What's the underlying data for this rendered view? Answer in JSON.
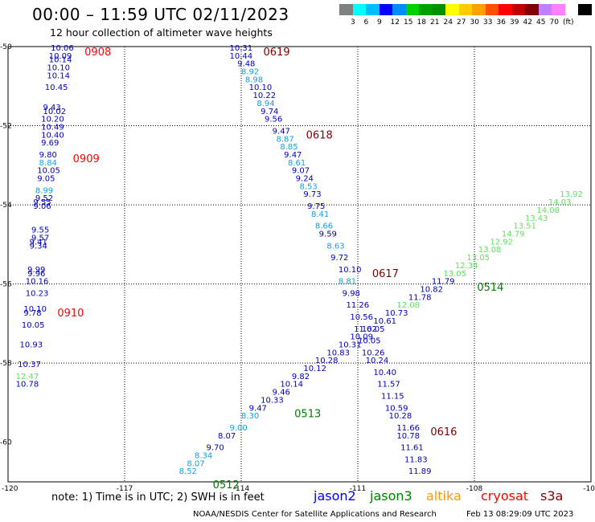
{
  "header": {
    "title": "00:00 – 11:59 UTC 02/11/2023",
    "subtitle": "12 hour collection of altimeter wave heights"
  },
  "scale": {
    "colors": [
      "#808080",
      "#00ffff",
      "#00bfff",
      "#0000ff",
      "#008cff",
      "#00d000",
      "#00a000",
      "#009000",
      "#ffff00",
      "#ffcc00",
      "#ffa000",
      "#ff5000",
      "#ff0000",
      "#c00000",
      "#800000",
      "#c080ff",
      "#ff80ff",
      "#ffffff",
      "#000000"
    ],
    "labels": [
      "3",
      "6",
      "9",
      "12",
      "15",
      "18",
      "21",
      "24",
      "27",
      "30",
      "33",
      "36",
      "39",
      "42",
      "45",
      "70"
    ],
    "unit": "(ft)"
  },
  "axes": {
    "lat_labels": [
      "-50",
      "-52",
      "-54",
      "-56",
      "-58",
      "-60"
    ],
    "lon_labels": [
      "-120",
      "-117",
      "-114",
      "-111",
      "-108",
      "-10"
    ]
  },
  "colors": {
    "darkblue": "#0000c0",
    "lightblue": "#10a0e0",
    "lightgreen": "#60e060",
    "darkgreen": "#008000",
    "red": "#ff0000",
    "maroon": "#800000",
    "orange": "#ff9900",
    "altika_text": "#ff9900"
  },
  "tracks": [
    {
      "time": "0619",
      "color": "maroon",
      "points": [
        {
          "lon": -114.3,
          "lat": -50.1,
          "v": "10.31",
          "c": "darkblue"
        },
        {
          "lon": -114.3,
          "lat": -50.3,
          "v": "10.44",
          "c": "darkblue"
        },
        {
          "lon": -114.1,
          "lat": -50.5,
          "v": "9.48",
          "c": "darkblue"
        },
        {
          "lon": -114.0,
          "lat": -50.7,
          "v": "8.92",
          "c": "lightblue"
        },
        {
          "lon": -113.9,
          "lat": -50.9,
          "v": "8.98",
          "c": "lightblue"
        },
        {
          "lon": -113.8,
          "lat": -51.1,
          "v": "10.10",
          "c": "darkblue"
        },
        {
          "lon": -113.7,
          "lat": -51.3,
          "v": "10.22",
          "c": "darkblue"
        },
        {
          "lon": -113.6,
          "lat": -51.5,
          "v": "8.94",
          "c": "lightblue"
        },
        {
          "lon": -113.5,
          "lat": -51.7,
          "v": "9.74",
          "c": "darkblue"
        },
        {
          "lon": -113.4,
          "lat": -51.9,
          "v": "9.56",
          "c": "darkblue"
        }
      ]
    },
    {
      "time": "0618",
      "color": "maroon",
      "points": [
        {
          "lon": -113.2,
          "lat": -52.2,
          "v": "9.47",
          "c": "darkblue"
        },
        {
          "lon": -113.1,
          "lat": -52.4,
          "v": "8.87",
          "c": "lightblue"
        },
        {
          "lon": -113.0,
          "lat": -52.6,
          "v": "8.85",
          "c": "lightblue"
        },
        {
          "lon": -112.9,
          "lat": -52.8,
          "v": "9.47",
          "c": "darkblue"
        },
        {
          "lon": -112.8,
          "lat": -53.0,
          "v": "8.61",
          "c": "lightblue"
        },
        {
          "lon": -112.7,
          "lat": -53.2,
          "v": "9.07",
          "c": "darkblue"
        },
        {
          "lon": -112.6,
          "lat": -53.4,
          "v": "9.24",
          "c": "darkblue"
        },
        {
          "lon": -112.5,
          "lat": -53.6,
          "v": "8.53",
          "c": "lightblue"
        },
        {
          "lon": -112.4,
          "lat": -53.8,
          "v": "9.73",
          "c": "darkblue"
        },
        {
          "lon": -112.3,
          "lat": -54.1,
          "v": "9.75",
          "c": "darkblue"
        },
        {
          "lon": -112.2,
          "lat": -54.3,
          "v": "8.41",
          "c": "lightblue"
        },
        {
          "lon": -112.1,
          "lat": -54.6,
          "v": "8.66",
          "c": "lightblue"
        },
        {
          "lon": -112.0,
          "lat": -54.8,
          "v": "9.59",
          "c": "darkblue"
        },
        {
          "lon": -111.8,
          "lat": -55.1,
          "v": "8.63",
          "c": "lightblue"
        },
        {
          "lon": -111.7,
          "lat": -55.4,
          "v": "9.72",
          "c": "darkblue"
        }
      ]
    },
    {
      "time": "0617",
      "color": "maroon",
      "points": [
        {
          "lon": -111.5,
          "lat": -55.7,
          "v": "10.10",
          "c": "darkblue"
        },
        {
          "lon": -111.5,
          "lat": -56.0,
          "v": "8.81",
          "c": "lightblue"
        },
        {
          "lon": -111.4,
          "lat": -56.3,
          "v": "9.98",
          "c": "darkblue"
        },
        {
          "lon": -111.3,
          "lat": -56.6,
          "v": "11.26",
          "c": "darkblue"
        },
        {
          "lon": -111.2,
          "lat": -56.9,
          "v": "10.56",
          "c": "darkblue"
        },
        {
          "lon": -111.1,
          "lat": -57.2,
          "v": "11.62",
          "c": "darkblue"
        },
        {
          "lon": -111.0,
          "lat": -57.5,
          "v": "10.05",
          "c": "darkblue"
        },
        {
          "lon": -110.9,
          "lat": -57.8,
          "v": "10.26",
          "c": "darkblue"
        },
        {
          "lon": -110.8,
          "lat": -58.0,
          "v": "10.24",
          "c": "darkblue"
        },
        {
          "lon": -110.6,
          "lat": -58.3,
          "v": "10.40",
          "c": "darkblue"
        },
        {
          "lon": -110.5,
          "lat": -58.6,
          "v": "11.57",
          "c": "darkblue"
        },
        {
          "lon": -110.4,
          "lat": -58.9,
          "v": "11.15",
          "c": "darkblue"
        },
        {
          "lon": -110.3,
          "lat": -59.2,
          "v": "10.59",
          "c": "darkblue"
        },
        {
          "lon": -110.2,
          "lat": -59.4,
          "v": "10.28",
          "c": "darkblue"
        }
      ]
    },
    {
      "time": "0616",
      "color": "maroon",
      "points": [
        {
          "lon": -110.0,
          "lat": -59.7,
          "v": "11.66",
          "c": "darkblue"
        },
        {
          "lon": -110.0,
          "lat": -59.9,
          "v": "10.78",
          "c": "darkblue"
        },
        {
          "lon": -109.9,
          "lat": -60.2,
          "v": "11.61",
          "c": "darkblue"
        },
        {
          "lon": -109.8,
          "lat": -60.5,
          "v": "11.83",
          "c": "darkblue"
        },
        {
          "lon": -109.7,
          "lat": -60.8,
          "v": "11.89",
          "c": "darkblue"
        }
      ]
    },
    {
      "time": "0908",
      "color": "red",
      "points": [
        {
          "lon": -118.9,
          "lat": -50.1,
          "v": "10.06",
          "c": "darkblue"
        },
        {
          "lon": -118.95,
          "lat": -50.3,
          "v": "10.09",
          "c": "darkblue"
        },
        {
          "lon": -118.95,
          "lat": -50.4,
          "v": "10.14",
          "c": "darkblue"
        },
        {
          "lon": -119.0,
          "lat": -50.6,
          "v": "10.10",
          "c": "darkblue"
        },
        {
          "lon": -119.0,
          "lat": -50.8,
          "v": "10.14",
          "c": "darkblue"
        },
        {
          "lon": -119.05,
          "lat": -51.1,
          "v": "10.45",
          "c": "darkblue"
        },
        {
          "lon": -119.1,
          "lat": -51.6,
          "v": "9.43",
          "c": "darkblue"
        },
        {
          "lon": -119.1,
          "lat": -51.7,
          "v": "10.02",
          "c": "darkblue"
        },
        {
          "lon": -119.15,
          "lat": -51.9,
          "v": "10.20",
          "c": "darkblue"
        },
        {
          "lon": -119.15,
          "lat": -52.1,
          "v": "10.49",
          "c": "darkblue"
        },
        {
          "lon": -119.15,
          "lat": -52.3,
          "v": "10.40",
          "c": "darkblue"
        },
        {
          "lon": -119.15,
          "lat": -52.5,
          "v": "9.69",
          "c": "darkblue"
        }
      ]
    },
    {
      "time": "0909",
      "color": "red",
      "points": [
        {
          "lon": -119.2,
          "lat": -52.8,
          "v": "9.80",
          "c": "darkblue"
        },
        {
          "lon": -119.2,
          "lat": -53.0,
          "v": "8.84",
          "c": "lightblue"
        },
        {
          "lon": -119.25,
          "lat": -53.2,
          "v": "10.05",
          "c": "darkblue"
        },
        {
          "lon": -119.25,
          "lat": -53.4,
          "v": "9.05",
          "c": "darkblue"
        },
        {
          "lon": -119.3,
          "lat": -53.7,
          "v": "8.99",
          "c": "lightblue"
        },
        {
          "lon": -119.3,
          "lat": -53.9,
          "v": "9.52",
          "c": "darkblue"
        },
        {
          "lon": -119.35,
          "lat": -54.0,
          "v": "9.55",
          "c": "darkblue"
        },
        {
          "lon": -119.35,
          "lat": -54.1,
          "v": "9.06",
          "c": "darkblue"
        },
        {
          "lon": -119.4,
          "lat": -54.7,
          "v": "9.55",
          "c": "darkblue"
        },
        {
          "lon": -119.4,
          "lat": -54.9,
          "v": "9.57",
          "c": "darkblue"
        },
        {
          "lon": -119.45,
          "lat": -55.0,
          "v": "9.41",
          "c": "darkblue"
        },
        {
          "lon": -119.45,
          "lat": -55.1,
          "v": "9.34",
          "c": "darkblue"
        },
        {
          "lon": -119.5,
          "lat": -55.7,
          "v": "9.99",
          "c": "darkblue"
        },
        {
          "lon": -119.5,
          "lat": -55.8,
          "v": "9.96",
          "c": "darkblue"
        },
        {
          "lon": -119.55,
          "lat": -56.0,
          "v": "10.16",
          "c": "darkblue"
        },
        {
          "lon": -119.55,
          "lat": -56.3,
          "v": "10.23",
          "c": "darkblue"
        }
      ]
    },
    {
      "time": "0910",
      "color": "red",
      "points": [
        {
          "lon": -119.6,
          "lat": -56.7,
          "v": "10.10",
          "c": "darkblue"
        },
        {
          "lon": -119.6,
          "lat": -56.8,
          "v": "9.78",
          "c": "darkblue"
        },
        {
          "lon": -119.65,
          "lat": -57.1,
          "v": "10.05",
          "c": "darkblue"
        },
        {
          "lon": -119.7,
          "lat": -57.6,
          "v": "10.93",
          "c": "darkblue"
        },
        {
          "lon": -119.75,
          "lat": -58.1,
          "v": "10.37",
          "c": "darkblue"
        },
        {
          "lon": -119.8,
          "lat": -58.4,
          "v": "12.47",
          "c": "lightgreen"
        },
        {
          "lon": -119.8,
          "lat": -58.6,
          "v": "10.78",
          "c": "darkblue"
        }
      ]
    },
    {
      "time": "0512",
      "color": "darkgreen",
      "points": [
        {
          "lon": -115.6,
          "lat": -60.8,
          "v": "8.52",
          "c": "lightblue"
        },
        {
          "lon": -115.4,
          "lat": -60.6,
          "v": "8.07",
          "c": "lightblue"
        },
        {
          "lon": -115.2,
          "lat": -60.4,
          "v": "8.34",
          "c": "lightblue"
        },
        {
          "lon": -114.9,
          "lat": -60.2,
          "v": "9.70",
          "c": "darkblue"
        },
        {
          "lon": -114.6,
          "lat": -59.9,
          "v": "8.07",
          "c": "darkblue"
        },
        {
          "lon": -114.3,
          "lat": -59.7,
          "v": "9.00",
          "c": "lightblue"
        },
        {
          "lon": -114.0,
          "lat": -59.4,
          "v": "8.30",
          "c": "lightblue"
        },
        {
          "lon": -113.8,
          "lat": -59.2,
          "v": "9.47",
          "c": "darkblue"
        }
      ]
    },
    {
      "time": "0513",
      "color": "darkgreen",
      "points": [
        {
          "lon": -113.5,
          "lat": -59.0,
          "v": "10.33",
          "c": "darkblue"
        },
        {
          "lon": -113.2,
          "lat": -58.8,
          "v": "9.46",
          "c": "darkblue"
        },
        {
          "lon": -113.0,
          "lat": -58.6,
          "v": "10.14",
          "c": "darkblue"
        },
        {
          "lon": -112.7,
          "lat": -58.4,
          "v": "9.82",
          "c": "darkblue"
        },
        {
          "lon": -112.4,
          "lat": -58.2,
          "v": "10.12",
          "c": "darkblue"
        },
        {
          "lon": -112.1,
          "lat": -58.0,
          "v": "10.28",
          "c": "darkblue"
        },
        {
          "lon": -111.8,
          "lat": -57.8,
          "v": "10.83",
          "c": "darkblue"
        },
        {
          "lon": -111.5,
          "lat": -57.6,
          "v": "10.31",
          "c": "darkblue"
        },
        {
          "lon": -111.2,
          "lat": -57.4,
          "v": "10.09",
          "c": "darkblue"
        },
        {
          "lon": -110.9,
          "lat": -57.2,
          "v": "10.05",
          "c": "darkblue"
        },
        {
          "lon": -110.6,
          "lat": -57.0,
          "v": "10.61",
          "c": "darkblue"
        },
        {
          "lon": -110.3,
          "lat": -56.8,
          "v": "10.73",
          "c": "darkblue"
        },
        {
          "lon": -110.0,
          "lat": -56.6,
          "v": "12.08",
          "c": "lightgreen"
        },
        {
          "lon": -109.7,
          "lat": -56.4,
          "v": "11.78",
          "c": "darkblue"
        },
        {
          "lon": -109.4,
          "lat": -56.2,
          "v": "10.82",
          "c": "darkblue"
        },
        {
          "lon": -109.1,
          "lat": -56.0,
          "v": "11.79",
          "c": "darkblue"
        }
      ]
    },
    {
      "time": "0514",
      "color": "darkgreen",
      "points": [
        {
          "lon": -108.8,
          "lat": -55.8,
          "v": "13.05",
          "c": "lightgreen"
        },
        {
          "lon": -108.5,
          "lat": -55.6,
          "v": "12.34",
          "c": "lightgreen"
        },
        {
          "lon": -108.2,
          "lat": -55.4,
          "v": "13.05",
          "c": "lightgreen"
        },
        {
          "lon": -107.9,
          "lat": -55.2,
          "v": "13.08",
          "c": "lightgreen"
        },
        {
          "lon": -107.6,
          "lat": -55.0,
          "v": "12.92",
          "c": "lightgreen"
        },
        {
          "lon": -107.3,
          "lat": -54.8,
          "v": "14.79",
          "c": "lightgreen"
        },
        {
          "lon": -107.0,
          "lat": -54.6,
          "v": "13.51",
          "c": "lightgreen"
        },
        {
          "lon": -106.7,
          "lat": -54.4,
          "v": "13.43",
          "c": "lightgreen"
        },
        {
          "lon": -106.4,
          "lat": -54.2,
          "v": "14.08",
          "c": "lightgreen"
        },
        {
          "lon": -106.1,
          "lat": -54.0,
          "v": "14.03",
          "c": "lightgreen"
        },
        {
          "lon": -105.8,
          "lat": -53.8,
          "v": "13.92",
          "c": "lightgreen"
        }
      ]
    }
  ],
  "note": "note: 1) Time is in UTC; 2) SWH is in feet",
  "legend": [
    {
      "name": "jason2",
      "color": "#0000ff"
    },
    {
      "name": "jason3",
      "color": "#008000"
    },
    {
      "name": "altika",
      "color": "#ff9900"
    },
    {
      "name": "cryosat",
      "color": "#ff0000"
    },
    {
      "name": "s3a",
      "color": "#800000"
    }
  ],
  "footer": {
    "org": "NOAA/NESDIS Center for Satellite Applications and Research",
    "timestamp": "Feb 13 08:29:09 UTC 2023"
  }
}
